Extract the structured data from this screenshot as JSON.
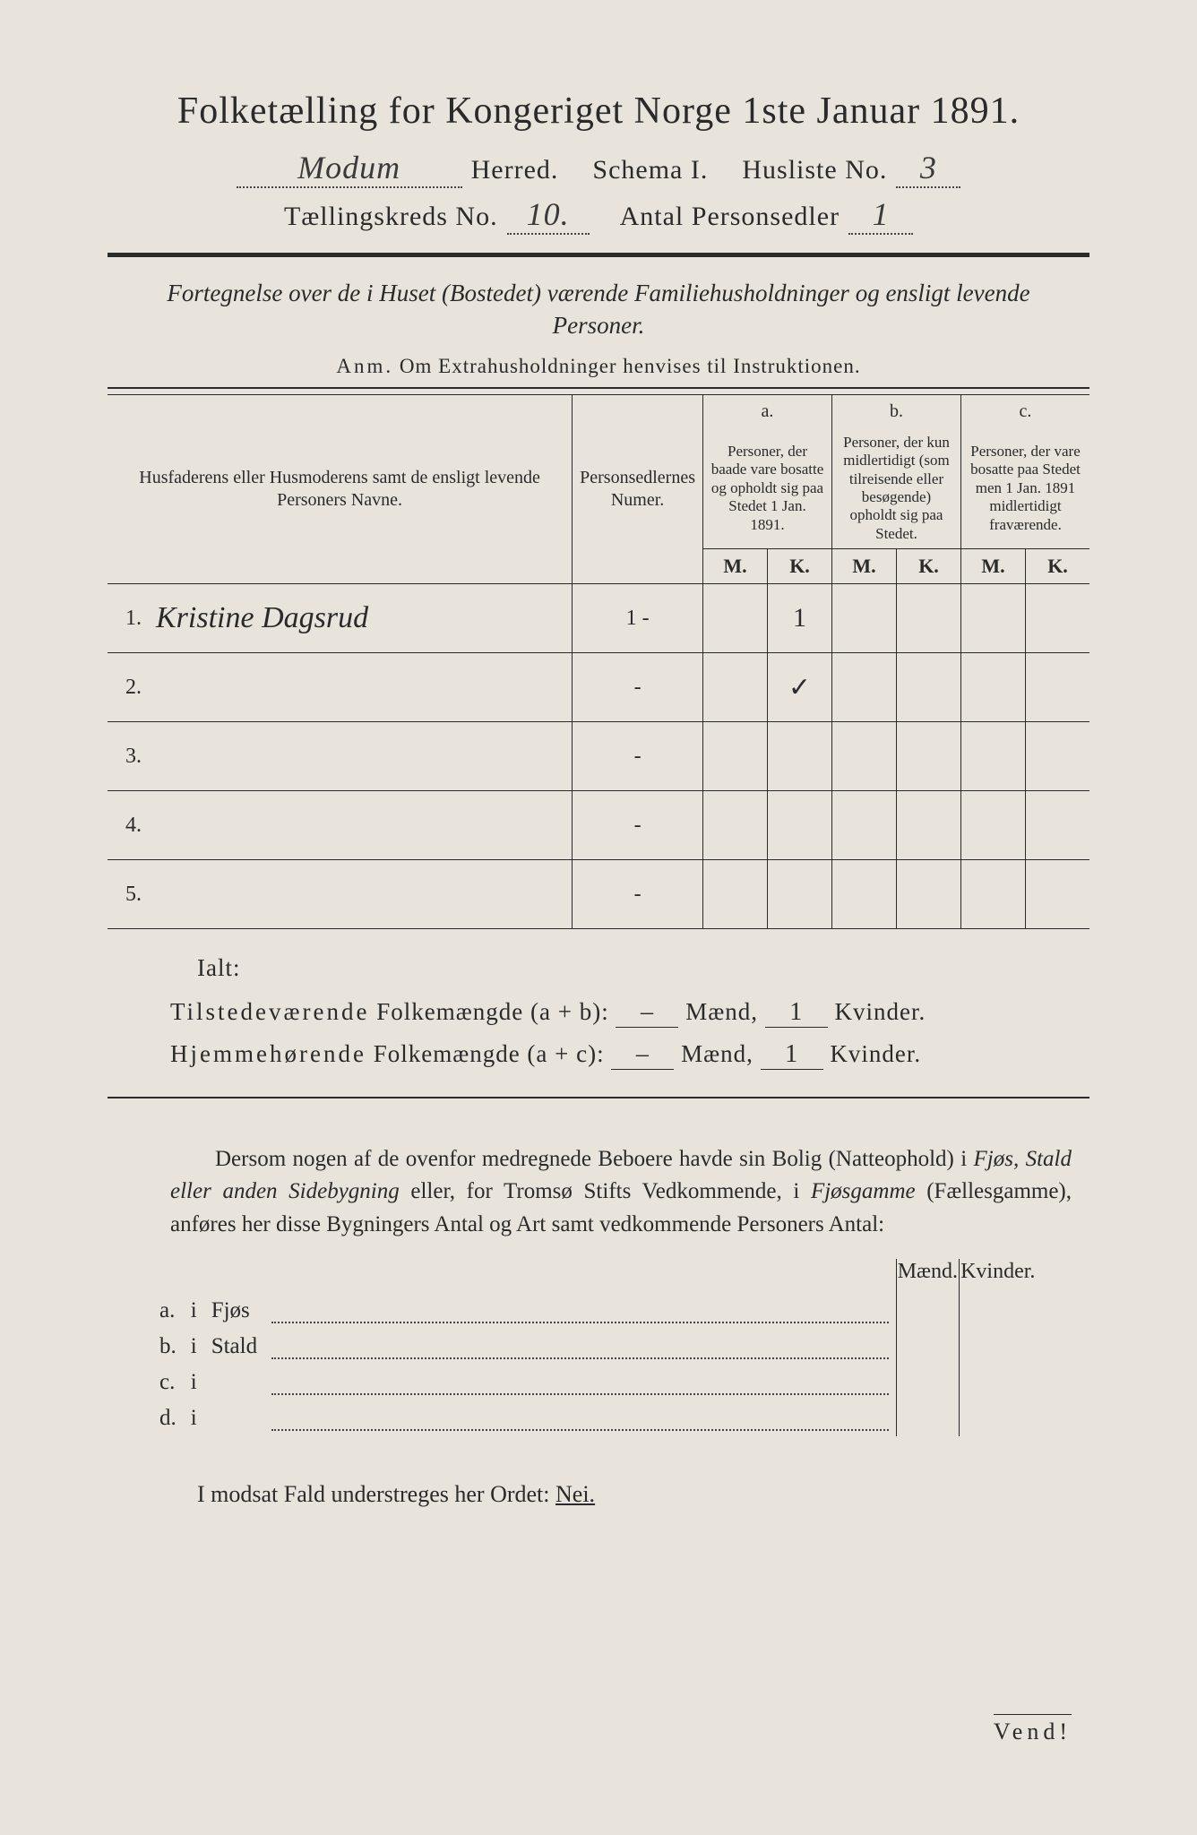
{
  "title": "Folketælling for Kongeriget Norge 1ste Januar 1891.",
  "header": {
    "herred_value": "Modum",
    "herred_label": "Herred.",
    "schema_label": "Schema I.",
    "husliste_label": "Husliste No.",
    "husliste_value": "3",
    "kreds_label": "Tællingskreds No.",
    "kreds_value": "10.",
    "antal_label": "Antal Personsedler",
    "antal_value": "1"
  },
  "description": "Fortegnelse over de i Huset (Bostedet) værende Familiehusholdninger og ensligt levende Personer.",
  "anm_label": "Anm.",
  "anm_text": "Om Extrahusholdninger henvises til Instruktionen.",
  "table": {
    "col_name": "Husfaderens eller Husmoderens samt de ensligt levende Personers Navne.",
    "col_num": "Personsedlernes Numer.",
    "col_a_label": "a.",
    "col_a": "Personer, der baade vare bosatte og opholdt sig paa Stedet 1 Jan. 1891.",
    "col_b_label": "b.",
    "col_b": "Personer, der kun midlertidigt (som tilreisende eller besøgende) opholdt sig paa Stedet.",
    "col_c_label": "c.",
    "col_c": "Personer, der vare bosatte paa Stedet men 1 Jan. 1891 midlertidigt fraværende.",
    "m": "M.",
    "k": "K.",
    "rows": [
      {
        "n": "1.",
        "name": "Kristine Dagsrud",
        "num": "1 -",
        "aM": "",
        "aK": "1",
        "bM": "",
        "bK": "",
        "cM": "",
        "cK": ""
      },
      {
        "n": "2.",
        "name": "",
        "num": "-",
        "aM": "",
        "aK": "✓",
        "bM": "",
        "bK": "",
        "cM": "",
        "cK": ""
      },
      {
        "n": "3.",
        "name": "",
        "num": "-",
        "aM": "",
        "aK": "",
        "bM": "",
        "bK": "",
        "cM": "",
        "cK": ""
      },
      {
        "n": "4.",
        "name": "",
        "num": "-",
        "aM": "",
        "aK": "",
        "bM": "",
        "bK": "",
        "cM": "",
        "cK": ""
      },
      {
        "n": "5.",
        "name": "",
        "num": "-",
        "aM": "",
        "aK": "",
        "bM": "",
        "bK": "",
        "cM": "",
        "cK": ""
      }
    ]
  },
  "totals": {
    "ialt": "Ialt:",
    "line1_label": "Tilstedeværende Folkemængde (a + b):",
    "line2_label": "Hjemmehørende Folkemængde (a + c):",
    "maend": "Mænd,",
    "kvinder": "Kvinder.",
    "l1_m": "–",
    "l1_k": "1",
    "l2_m": "–",
    "l2_k": "1"
  },
  "paragraph": "Dersom nogen af de ovenfor medregnede Beboere havde sin Bolig (Natteophold) i Fjøs, Stald eller anden Sidebygning eller, for Tromsø Stifts Vedkommende, i Fjøsgamme (Fællesgamme), anføres her disse Bygningers Antal og Art samt vedkommende Personers Antal:",
  "bldg": {
    "maend": "Mænd.",
    "kvinder": "Kvinder.",
    "rows": [
      {
        "l": "a.",
        "i": "i",
        "name": "Fjøs"
      },
      {
        "l": "b.",
        "i": "i",
        "name": "Stald"
      },
      {
        "l": "c.",
        "i": "i",
        "name": ""
      },
      {
        "l": "d.",
        "i": "i",
        "name": ""
      }
    ]
  },
  "footer": "I modsat Fald understreges her Ordet:",
  "nei": "Nei.",
  "vend": "Vend!"
}
